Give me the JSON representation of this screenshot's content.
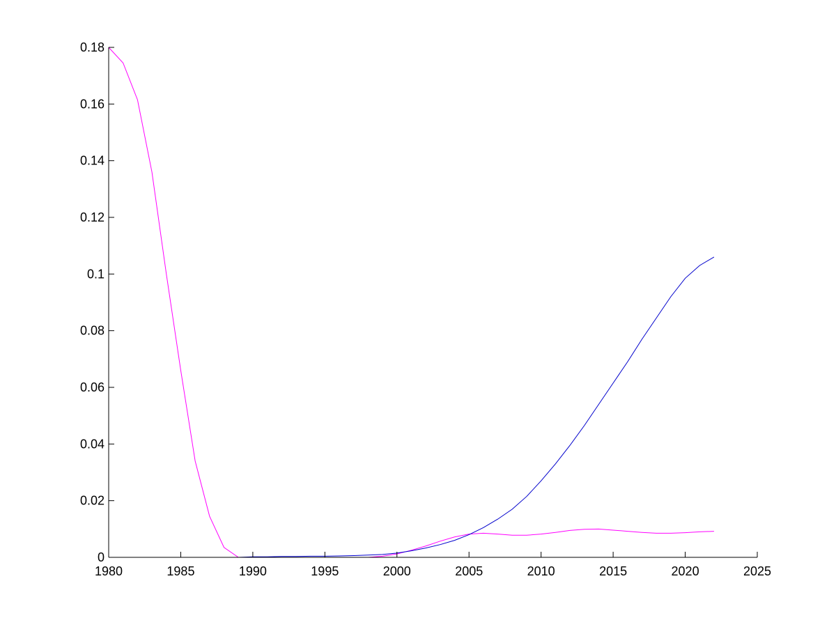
{
  "chart_data": {
    "type": "line",
    "title": "",
    "xlabel": "",
    "ylabel": "",
    "xlim": [
      1980,
      2025
    ],
    "ylim": [
      0,
      0.18
    ],
    "grid": false,
    "xticks": [
      1980,
      1985,
      1990,
      1995,
      2000,
      2005,
      2010,
      2015,
      2020,
      2025
    ],
    "yticks": [
      0,
      0.02,
      0.04,
      0.06,
      0.08,
      0.1,
      0.12,
      0.14,
      0.16,
      0.18
    ],
    "xtick_labels": [
      "1980",
      "1985",
      "1990",
      "1995",
      "2000",
      "2005",
      "2010",
      "2015",
      "2020",
      "2025"
    ],
    "ytick_labels": [
      "0",
      "0.02",
      "0.04",
      "0.06",
      "0.08",
      "0.1",
      "0.12",
      "0.14",
      "0.16",
      "0.18"
    ],
    "series": [
      {
        "color": "#ff00ff",
        "x": [
          1980,
          1981,
          1982,
          1983,
          1984,
          1985,
          1986,
          1987,
          1988,
          1989,
          1990,
          1991,
          1992,
          1993,
          1994,
          1995,
          1996,
          1997,
          1998,
          1999,
          2000,
          2001,
          2002,
          2003,
          2004,
          2005,
          2006,
          2007,
          2008,
          2009,
          2010,
          2011,
          2012,
          2013,
          2014,
          2015,
          2016,
          2017,
          2018,
          2019,
          2020,
          2021,
          2022
        ],
        "y": [
          0.18,
          0.1745,
          0.1615,
          0.136,
          0.1,
          0.066,
          0.034,
          0.0145,
          0.0035,
          0.0,
          0.0,
          0.0,
          0.0,
          0.0,
          0.0,
          0.0,
          0.0,
          0.0,
          0.0,
          0.0004,
          0.0012,
          0.0025,
          0.004,
          0.0057,
          0.0072,
          0.0082,
          0.0085,
          0.0082,
          0.0078,
          0.0078,
          0.0082,
          0.0088,
          0.0095,
          0.0099,
          0.01,
          0.0096,
          0.0092,
          0.0088,
          0.0085,
          0.0085,
          0.0087,
          0.009,
          0.0092
        ]
      },
      {
        "color": "#0000cc",
        "x": [
          1980,
          1981,
          1982,
          1983,
          1984,
          1985,
          1986,
          1987,
          1988,
          1989,
          1990,
          1991,
          1992,
          1993,
          1994,
          1995,
          1996,
          1997,
          1998,
          1999,
          2000,
          2001,
          2002,
          2003,
          2004,
          2005,
          2006,
          2007,
          2008,
          2009,
          2010,
          2011,
          2012,
          2013,
          2014,
          2015,
          2016,
          2017,
          2018,
          2019,
          2020,
          2021,
          2022
        ],
        "y": [
          0.0,
          0.0,
          0.0,
          0.0,
          0.0,
          0.0,
          0.0,
          0.0,
          0.0,
          0.0,
          0.0002,
          0.0002,
          0.0003,
          0.0003,
          0.0004,
          0.0004,
          0.0005,
          0.0006,
          0.0008,
          0.001,
          0.0015,
          0.0023,
          0.0033,
          0.0045,
          0.006,
          0.008,
          0.0105,
          0.0135,
          0.017,
          0.0215,
          0.027,
          0.033,
          0.0395,
          0.0465,
          0.054,
          0.0615,
          0.069,
          0.077,
          0.0845,
          0.092,
          0.0985,
          0.103,
          0.106
        ]
      }
    ]
  }
}
